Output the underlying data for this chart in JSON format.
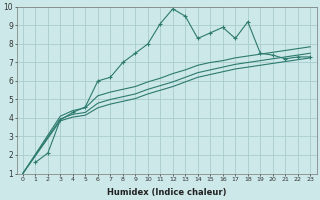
{
  "xlabel": "Humidex (Indice chaleur)",
  "ylabel": "",
  "bg_color": "#cce8e8",
  "grid_color": "#aacccc",
  "line_color": "#2d7a6e",
  "xlim": [
    -0.5,
    23.5
  ],
  "ylim": [
    1,
    10
  ],
  "xticks": [
    0,
    1,
    2,
    3,
    4,
    5,
    6,
    7,
    8,
    9,
    10,
    11,
    12,
    13,
    14,
    15,
    16,
    17,
    18,
    19,
    20,
    21,
    22,
    23
  ],
  "yticks": [
    1,
    2,
    3,
    4,
    5,
    6,
    7,
    8,
    9,
    10
  ],
  "series": [
    {
      "x": [
        1,
        2,
        3,
        4,
        5,
        6,
        7,
        8,
        9,
        10,
        11,
        12,
        13,
        14,
        15,
        16,
        17,
        18,
        19,
        20,
        21,
        22,
        23
      ],
      "y": [
        1.6,
        2.1,
        3.9,
        4.3,
        4.6,
        6.0,
        6.2,
        7.0,
        7.5,
        8.0,
        9.1,
        9.9,
        9.5,
        8.3,
        8.6,
        8.9,
        8.3,
        9.2,
        7.5,
        7.4,
        7.2,
        7.3,
        7.3
      ],
      "marker": true
    },
    {
      "x": [
        0,
        3,
        4,
        5,
        6,
        7,
        8,
        9,
        10,
        11,
        12,
        13,
        14,
        15,
        16,
        17,
        18,
        19,
        20,
        21,
        22,
        23
      ],
      "y": [
        1.0,
        4.1,
        4.4,
        4.55,
        5.2,
        5.4,
        5.55,
        5.7,
        5.95,
        6.15,
        6.4,
        6.6,
        6.85,
        7.0,
        7.1,
        7.25,
        7.35,
        7.45,
        7.55,
        7.65,
        7.75,
        7.85
      ],
      "marker": false
    },
    {
      "x": [
        0,
        3,
        4,
        5,
        6,
        7,
        8,
        9,
        10,
        11,
        12,
        13,
        14,
        15,
        16,
        17,
        18,
        19,
        20,
        21,
        22,
        23
      ],
      "y": [
        1.0,
        3.95,
        4.2,
        4.3,
        4.8,
        5.0,
        5.15,
        5.3,
        5.55,
        5.75,
        5.95,
        6.2,
        6.45,
        6.6,
        6.75,
        6.9,
        7.0,
        7.1,
        7.2,
        7.3,
        7.4,
        7.5
      ],
      "marker": false
    },
    {
      "x": [
        0,
        3,
        4,
        5,
        6,
        7,
        8,
        9,
        10,
        11,
        12,
        13,
        14,
        15,
        16,
        17,
        18,
        19,
        20,
        21,
        22,
        23
      ],
      "y": [
        1.0,
        3.85,
        4.05,
        4.15,
        4.55,
        4.75,
        4.9,
        5.05,
        5.3,
        5.5,
        5.7,
        5.95,
        6.2,
        6.35,
        6.5,
        6.65,
        6.75,
        6.85,
        6.95,
        7.05,
        7.15,
        7.25
      ],
      "marker": false
    }
  ]
}
